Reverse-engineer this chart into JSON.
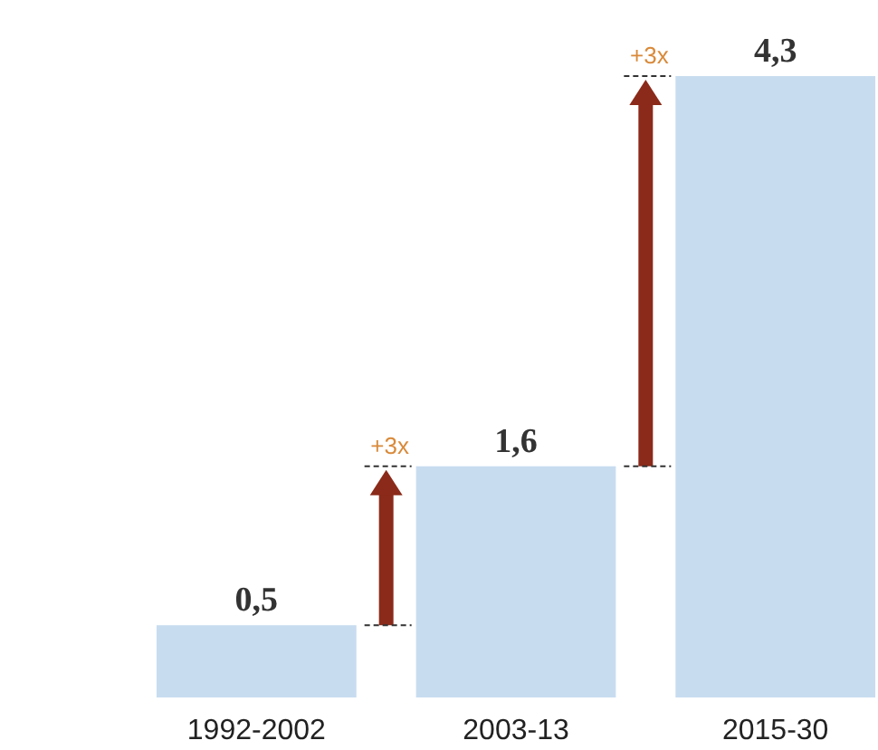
{
  "chart_data": {
    "type": "bar",
    "categories": [
      "1992-2002",
      "2003-13",
      "2015-30"
    ],
    "values": [
      0.5,
      1.6,
      4.3
    ],
    "value_labels": [
      "0,5",
      "1,6",
      "4,3"
    ],
    "color": "#c8dcf0",
    "annotations": [
      "+3x",
      "+3x"
    ]
  }
}
